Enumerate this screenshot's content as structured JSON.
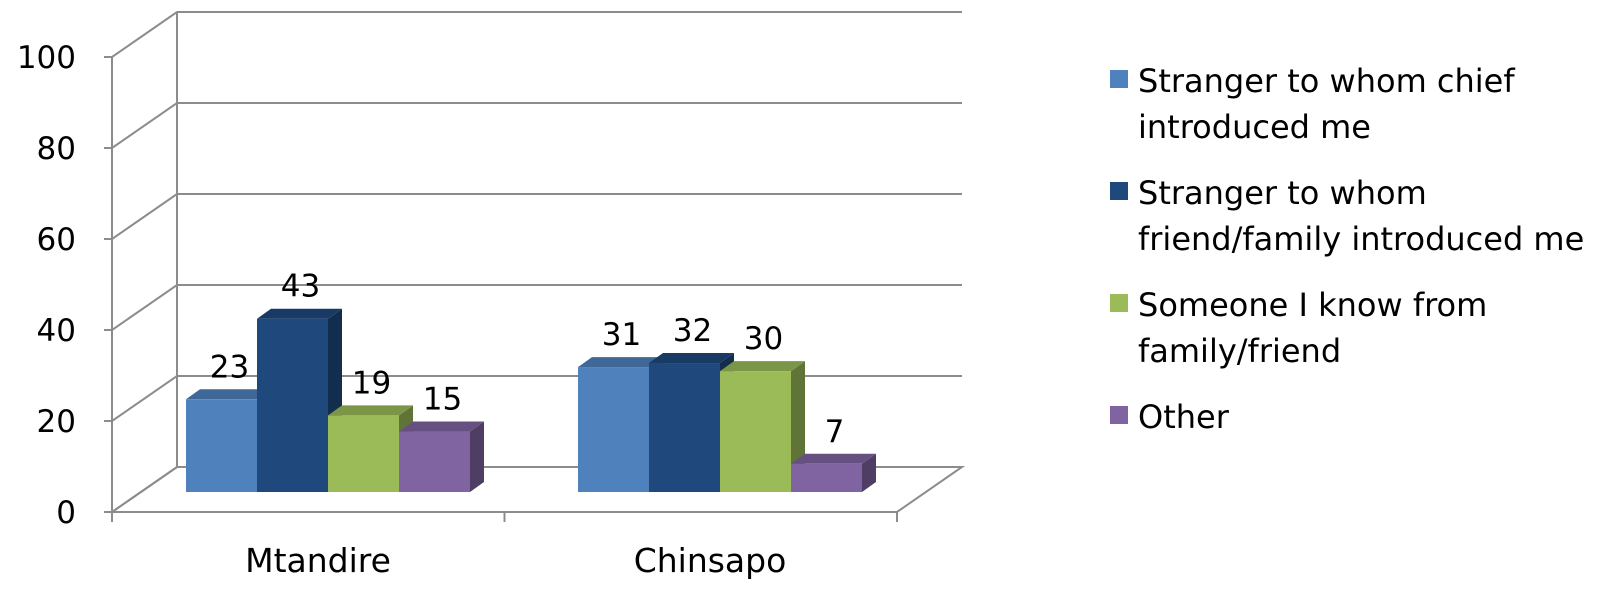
{
  "chart_data": {
    "type": "bar",
    "categories": [
      "Mtandire",
      "Chinsapo"
    ],
    "series": [
      {
        "name": "Stranger to whom chief introduced me",
        "values": [
          23,
          31
        ],
        "color": "#4f81bd"
      },
      {
        "name": "Stranger to whom friend/family introduced me",
        "values": [
          43,
          32
        ],
        "color": "#1f497d"
      },
      {
        "name": "Someone I know from family/friend",
        "values": [
          19,
          30
        ],
        "color": "#9bbb59"
      },
      {
        "name": "Other",
        "values": [
          15,
          7
        ],
        "color": "#8064a2"
      }
    ],
    "ylim": [
      0,
      100
    ],
    "yticks": [
      "0",
      "20",
      "40",
      "60",
      "80",
      "100"
    ],
    "grid": true,
    "legend": "right",
    "style": "3d-clustered-column"
  },
  "legend": {
    "items": [
      {
        "label": "Stranger to whom chief\nintroduced me",
        "icon": "square-swatch"
      },
      {
        "label": "Stranger to whom\nfriend/family introduced me",
        "icon": "square-swatch"
      },
      {
        "label": "Someone I know from\nfamily/friend",
        "icon": "square-swatch"
      },
      {
        "label": "Other",
        "icon": "square-swatch"
      }
    ]
  }
}
